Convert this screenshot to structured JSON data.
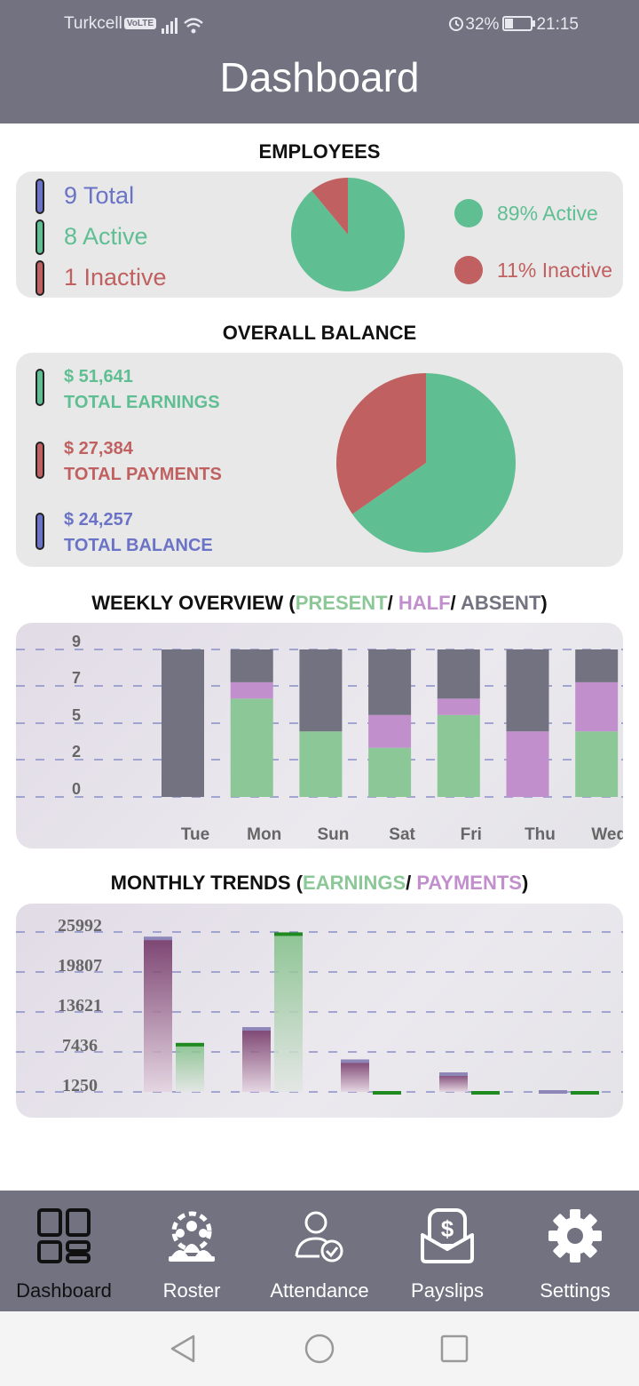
{
  "status_bar": {
    "carrier": "Turkcell",
    "volte": "VoLTE",
    "battery": "32%",
    "time": "21:15"
  },
  "header": {
    "title": "Dashboard"
  },
  "employees": {
    "section_title": "EMPLOYEES",
    "total": "9 Total",
    "active": "8 Active",
    "inactive": "1 Inactive",
    "legend_active": "89% Active",
    "legend_inactive": "11% Inactive",
    "active_fraction": 0.89,
    "colors": {
      "total": "#6a73c6",
      "active": "#5fbf93",
      "inactive": "#c06060"
    }
  },
  "balance": {
    "section_title": "OVERALL BALANCE",
    "earnings_value": "$ 51,641",
    "earnings_label": "TOTAL EARNINGS",
    "payments_value": "$ 27,384",
    "payments_label": "TOTAL PAYMENTS",
    "balance_value": "$ 24,257",
    "balance_label": "TOTAL BALANCE"
  },
  "weekly": {
    "title_main": "WEEKLY OVERVIEW (",
    "title_present": "PRESENT",
    "title_sep1": "/ ",
    "title_half": "HALF",
    "title_sep2": "/ ",
    "title_absent": "ABSENT",
    "title_close": ")",
    "colors": {
      "present": "#8cc897",
      "half": "#c08fcc",
      "absent": "#737280"
    }
  },
  "monthly": {
    "title_main": "MONTHLY TRENDS (",
    "title_earnings": "EARNINGS",
    "title_sep": "/ ",
    "title_payments": "PAYMENTS",
    "title_close": ")",
    "colors": {
      "earnings": "#8cc897",
      "payments": "#c08fcc"
    }
  },
  "chart_data": [
    {
      "type": "pie",
      "labels": [
        "Active",
        "Inactive"
      ],
      "values": [
        89,
        11
      ],
      "colors": [
        "#5fbf93",
        "#c06060"
      ]
    },
    {
      "type": "pie",
      "labels": [
        "TOTAL EARNINGS",
        "TOTAL PAYMENTS"
      ],
      "values": [
        51641,
        27384
      ],
      "colors": [
        "#5fbf93",
        "#c06060"
      ]
    },
    {
      "type": "bar",
      "stacked": true,
      "categories": [
        "Tue",
        "Mon",
        "Sun",
        "Sat",
        "Fri",
        "Thu",
        "Wed"
      ],
      "series": [
        {
          "name": "PRESENT",
          "values": [
            0,
            6,
            4,
            3,
            5,
            0,
            4
          ]
        },
        {
          "name": "HALF",
          "values": [
            0,
            1,
            0,
            2,
            1,
            4,
            3
          ]
        },
        {
          "name": "ABSENT",
          "values": [
            9,
            2,
            5,
            4,
            3,
            5,
            2
          ]
        }
      ],
      "yticks": [
        "9",
        "7",
        "5",
        "2",
        "0"
      ],
      "ylim": [
        0,
        9
      ],
      "grid": true
    },
    {
      "type": "bar",
      "categories": [
        "",
        "",
        "",
        "",
        ""
      ],
      "series": [
        {
          "name": "PAYMENTS",
          "values": [
            25000,
            11000,
            6000,
            4000,
            1250
          ]
        },
        {
          "name": "EARNINGS",
          "values": [
            8700,
            25800,
            1250,
            1250,
            1250
          ]
        }
      ],
      "yticks": [
        "25992",
        "19807",
        "13621",
        "7436",
        "1250"
      ],
      "ylim": [
        1250,
        25992
      ],
      "grid": true
    }
  ],
  "nav": {
    "dashboard": "Dashboard",
    "roster": "Roster",
    "attendance": "Attendance",
    "payslips": "Payslips",
    "settings": "Settings"
  }
}
